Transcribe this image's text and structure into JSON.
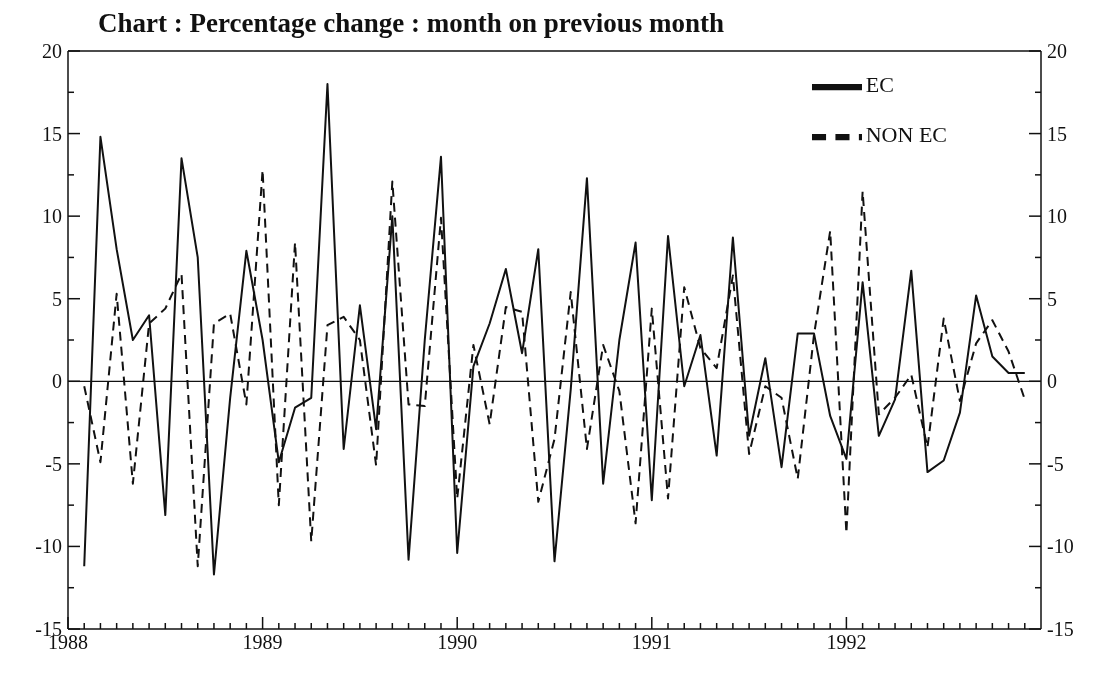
{
  "chart_data": {
    "type": "line",
    "title": "Chart : Percentage change : month on previous month",
    "x": [
      "1988-02",
      "1988-03",
      "1988-04",
      "1988-05",
      "1988-06",
      "1988-07",
      "1988-08",
      "1988-09",
      "1988-10",
      "1988-11",
      "1988-12",
      "1989-01",
      "1989-02",
      "1989-03",
      "1989-04",
      "1989-05",
      "1989-06",
      "1989-07",
      "1989-08",
      "1989-09",
      "1989-10",
      "1989-11",
      "1989-12",
      "1990-01",
      "1990-02",
      "1990-03",
      "1990-04",
      "1990-05",
      "1990-06",
      "1990-07",
      "1990-08",
      "1990-09",
      "1990-10",
      "1990-11",
      "1990-12",
      "1991-01",
      "1991-02",
      "1991-03",
      "1991-04",
      "1991-05",
      "1991-06",
      "1991-07",
      "1991-08",
      "1991-09",
      "1991-10",
      "1991-11",
      "1991-12",
      "1992-01",
      "1992-02",
      "1992-03",
      "1992-04",
      "1992-05",
      "1992-06",
      "1992-07",
      "1992-08",
      "1992-09",
      "1992-10",
      "1992-11",
      "1992-12"
    ],
    "series": [
      {
        "name": "EC",
        "color": "#111111",
        "line_style": "solid",
        "values": [
          -11.2,
          14.8,
          8,
          2.5,
          4,
          -8.1,
          13.5,
          7.5,
          -11.7,
          -1,
          7.9,
          2.5,
          -4.9,
          -1.6,
          -1,
          18,
          -4.1,
          4.6,
          -2.9,
          10,
          -10.8,
          2.5,
          13.6,
          -10.4,
          0.9,
          3.5,
          6.8,
          1.7,
          8,
          -10.9,
          -0.5,
          12.3,
          -6.2,
          2.5,
          8.4,
          -7.2,
          8.8,
          -0.3,
          2.8,
          -4.5,
          8.7,
          -3.3,
          1.4,
          -5.2,
          2.9,
          2.9,
          -2.1,
          -4.7,
          6,
          -3.3,
          -1.1,
          6.7,
          -5.5,
          -4.8,
          -1.9,
          5.2,
          1.5,
          0.5,
          0.5
        ]
      },
      {
        "name": "NON EC",
        "color": "#111111",
        "line_style": "dashed",
        "values": [
          -0.3,
          -4.9,
          5.3,
          -6.2,
          3.5,
          4.4,
          6.5,
          -11.2,
          3.5,
          4.1,
          -1.4,
          12.8,
          -7.5,
          8.4,
          -9.7,
          3.4,
          3.9,
          2.5,
          -5.1,
          12.1,
          -1.4,
          -1.5,
          9.9,
          -7.1,
          2.2,
          -2.6,
          4.5,
          4.2,
          -7.3,
          -3.5,
          5.4,
          -4.1,
          2.2,
          -0.6,
          -8.6,
          4.4,
          -7.1,
          5.7,
          2,
          0.8,
          6.4,
          -4.4,
          -0.3,
          -1,
          -5.9,
          2.8,
          9.1,
          -9.2,
          11.5,
          -2,
          -1,
          0.4,
          -4,
          3.8,
          -1.2,
          2.3,
          3.7,
          1.8,
          -1.1
        ]
      }
    ],
    "xlim": [
      "1988-01",
      "1993-01"
    ],
    "xticks": [
      {
        "value": "1988-01",
        "label": "1988"
      },
      {
        "value": "1988-02",
        "label": null
      },
      {
        "value": "1988-03",
        "label": null
      },
      {
        "value": "1988-04",
        "label": null
      },
      {
        "value": "1988-05",
        "label": null
      },
      {
        "value": "1988-06",
        "label": null
      },
      {
        "value": "1988-07",
        "label": null
      },
      {
        "value": "1988-08",
        "label": null
      },
      {
        "value": "1988-09",
        "label": null
      },
      {
        "value": "1988-10",
        "label": null
      },
      {
        "value": "1988-11",
        "label": null
      },
      {
        "value": "1988-12",
        "label": null
      },
      {
        "value": "1989-01",
        "label": "1989"
      },
      {
        "value": "1989-02",
        "label": null
      },
      {
        "value": "1989-03",
        "label": null
      },
      {
        "value": "1989-04",
        "label": null
      },
      {
        "value": "1989-05",
        "label": null
      },
      {
        "value": "1989-06",
        "label": null
      },
      {
        "value": "1989-07",
        "label": null
      },
      {
        "value": "1989-08",
        "label": null
      },
      {
        "value": "1989-09",
        "label": null
      },
      {
        "value": "1989-10",
        "label": null
      },
      {
        "value": "1989-11",
        "label": null
      },
      {
        "value": "1989-12",
        "label": null
      },
      {
        "value": "1990-01",
        "label": "1990"
      },
      {
        "value": "1990-02",
        "label": null
      },
      {
        "value": "1990-03",
        "label": null
      },
      {
        "value": "1990-04",
        "label": null
      },
      {
        "value": "1990-05",
        "label": null
      },
      {
        "value": "1990-06",
        "label": null
      },
      {
        "value": "1990-07",
        "label": null
      },
      {
        "value": "1990-08",
        "label": null
      },
      {
        "value": "1990-09",
        "label": null
      },
      {
        "value": "1990-10",
        "label": null
      },
      {
        "value": "1990-11",
        "label": null
      },
      {
        "value": "1990-12",
        "label": null
      },
      {
        "value": "1991-01",
        "label": "1991"
      },
      {
        "value": "1991-02",
        "label": null
      },
      {
        "value": "1991-03",
        "label": null
      },
      {
        "value": "1991-04",
        "label": null
      },
      {
        "value": "1991-05",
        "label": null
      },
      {
        "value": "1991-06",
        "label": null
      },
      {
        "value": "1991-07",
        "label": null
      },
      {
        "value": "1991-08",
        "label": null
      },
      {
        "value": "1991-09",
        "label": null
      },
      {
        "value": "1991-10",
        "label": null
      },
      {
        "value": "1991-11",
        "label": null
      },
      {
        "value": "1991-12",
        "label": null
      },
      {
        "value": "1992-01",
        "label": "1992"
      },
      {
        "value": "1992-02",
        "label": null
      },
      {
        "value": "1992-03",
        "label": null
      },
      {
        "value": "1992-04",
        "label": null
      },
      {
        "value": "1992-05",
        "label": null
      },
      {
        "value": "1992-06",
        "label": null
      },
      {
        "value": "1992-07",
        "label": null
      },
      {
        "value": "1992-08",
        "label": null
      },
      {
        "value": "1992-09",
        "label": null
      },
      {
        "value": "1992-10",
        "label": null
      },
      {
        "value": "1992-11",
        "label": null
      },
      {
        "value": "1992-12",
        "label": null
      }
    ],
    "ylim": [
      -15,
      20
    ],
    "yticks": [
      -15,
      {
        "value": -12.5,
        "label": null
      },
      -10,
      {
        "value": -7.5,
        "label": null
      },
      -5,
      {
        "value": -2.5,
        "label": null
      },
      0,
      {
        "value": 2.5,
        "label": null
      },
      5,
      {
        "value": 7.5,
        "label": null
      },
      10,
      {
        "value": 12.5,
        "label": null
      },
      15,
      {
        "value": 17.5,
        "label": null
      },
      20
    ],
    "y2lim": [
      -15,
      20
    ],
    "y2ticks": [
      -15,
      {
        "value": -12.5,
        "label": null
      },
      -10,
      {
        "value": -7.5,
        "label": null
      },
      -5,
      {
        "value": -2.5,
        "label": null
      },
      0,
      {
        "value": 2.5,
        "label": null
      },
      5,
      {
        "value": 7.5,
        "label": null
      },
      10,
      {
        "value": 12.5,
        "label": null
      },
      15,
      {
        "value": 17.5,
        "label": null
      },
      20
    ],
    "ref_lines": [
      {
        "axis": "y",
        "value": 0,
        "color": "#111111"
      }
    ],
    "legend": "top right"
  }
}
